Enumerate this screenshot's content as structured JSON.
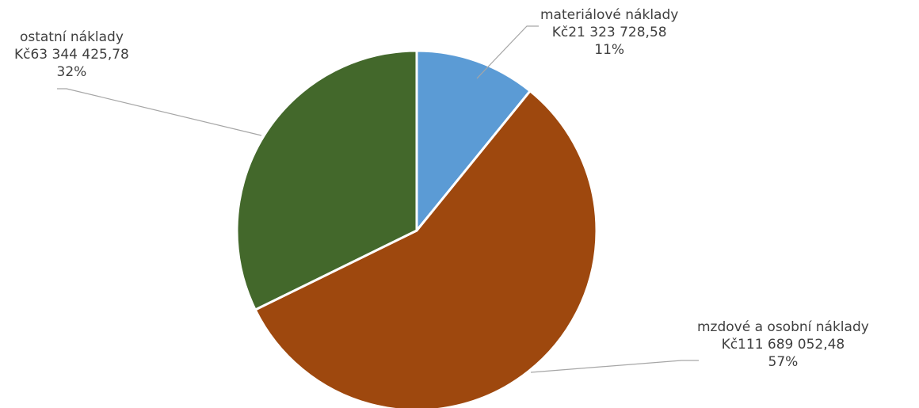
{
  "chart_data": {
    "type": "pie",
    "title": "",
    "legend": "none",
    "slices": [
      {
        "name": "materiálové náklady",
        "value": 21323728.58,
        "value_label": "Kč21 323 728,58",
        "percent_label": "11%",
        "color": "#5b9bd5"
      },
      {
        "name": "mzdové a osobní náklady",
        "value": 111689052.48,
        "value_label": "Kč111 689 052,48",
        "percent_label": "57%",
        "color": "#9e480e"
      },
      {
        "name": "ostatní náklady",
        "value": 63344425.78,
        "value_label": "Kč63 344 425,78",
        "percent_label": "32%",
        "color": "#43682b"
      }
    ]
  }
}
